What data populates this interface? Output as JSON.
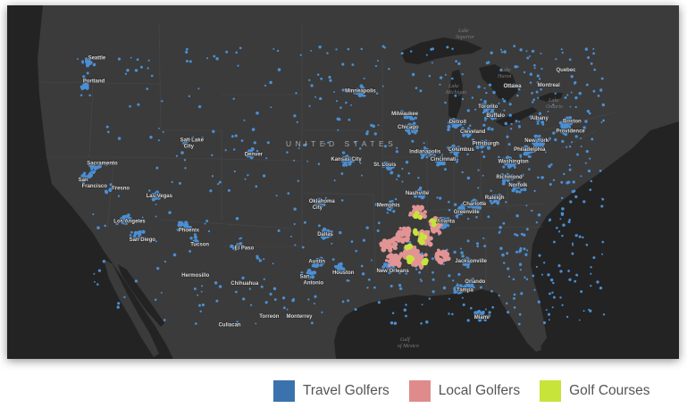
{
  "map": {
    "country_label": "UNITED STATES",
    "water_labels": [
      "Lake Superior",
      "Lake Huron",
      "Lake Michigan",
      "Lake Ontario",
      "Gulf of Mexico"
    ],
    "cities": [
      {
        "name": "Seattle",
        "lon": -122.33,
        "lat": 47.61
      },
      {
        "name": "Portland",
        "lon": -122.68,
        "lat": 45.52
      },
      {
        "name": "Sacramento",
        "lon": -121.49,
        "lat": 38.58
      },
      {
        "name": "San Francisco",
        "lon": -122.42,
        "lat": 37.77
      },
      {
        "name": "Fresno",
        "lon": -119.79,
        "lat": 36.74
      },
      {
        "name": "Los Angeles",
        "lon": -118.24,
        "lat": 34.05
      },
      {
        "name": "San Diego",
        "lon": -117.16,
        "lat": 32.72
      },
      {
        "name": "Las Vegas",
        "lon": -115.14,
        "lat": 36.17
      },
      {
        "name": "Phoenix",
        "lon": -112.07,
        "lat": 33.45
      },
      {
        "name": "Tucson",
        "lon": -110.97,
        "lat": 32.22
      },
      {
        "name": "Salt Lake City",
        "lon": -111.89,
        "lat": 40.76
      },
      {
        "name": "Denver",
        "lon": -104.99,
        "lat": 39.74
      },
      {
        "name": "El Paso",
        "lon": -106.44,
        "lat": 31.76
      },
      {
        "name": "Hermosillo",
        "lon": -110.96,
        "lat": 29.07
      },
      {
        "name": "Chihuahua",
        "lon": -106.08,
        "lat": 28.63
      },
      {
        "name": "Culiacan",
        "lon": -107.39,
        "lat": 24.81
      },
      {
        "name": "Torreón",
        "lon": -103.41,
        "lat": 25.54
      },
      {
        "name": "Monterrey",
        "lon": -100.31,
        "lat": 25.69
      },
      {
        "name": "Minneapolis",
        "lon": -93.27,
        "lat": 44.98
      },
      {
        "name": "Kansas City",
        "lon": -94.58,
        "lat": 39.1
      },
      {
        "name": "Oklahoma City",
        "lon": -97.52,
        "lat": 35.47
      },
      {
        "name": "Dallas",
        "lon": -96.8,
        "lat": 32.78
      },
      {
        "name": "Austin",
        "lon": -97.74,
        "lat": 30.27
      },
      {
        "name": "San Antonio",
        "lon": -98.49,
        "lat": 29.42
      },
      {
        "name": "Houston",
        "lon": -95.37,
        "lat": 29.76
      },
      {
        "name": "New Orleans",
        "lon": -90.07,
        "lat": 29.95
      },
      {
        "name": "Memphis",
        "lon": -90.05,
        "lat": 35.15
      },
      {
        "name": "St. Louis",
        "lon": -90.2,
        "lat": 38.63
      },
      {
        "name": "Nashville",
        "lon": -86.78,
        "lat": 36.16
      },
      {
        "name": "Atlanta",
        "lon": -84.39,
        "lat": 33.75
      },
      {
        "name": "Chicago",
        "lon": -87.63,
        "lat": 41.88
      },
      {
        "name": "Milwaukee",
        "lon": -87.91,
        "lat": 43.04
      },
      {
        "name": "Detroit",
        "lon": -83.05,
        "lat": 42.33
      },
      {
        "name": "Indianapolis",
        "lon": -86.16,
        "lat": 39.77
      },
      {
        "name": "Cincinnati",
        "lon": -84.51,
        "lat": 39.1
      },
      {
        "name": "Columbus",
        "lon": -82.99,
        "lat": 39.96
      },
      {
        "name": "Cleveland",
        "lon": -81.69,
        "lat": 41.5
      },
      {
        "name": "Pittsburgh",
        "lon": -79.99,
        "lat": 40.44
      },
      {
        "name": "Buffalo",
        "lon": -78.88,
        "lat": 42.89
      },
      {
        "name": "Toronto",
        "lon": -79.38,
        "lat": 43.65
      },
      {
        "name": "Ottawa",
        "lon": -75.7,
        "lat": 45.42
      },
      {
        "name": "Montreal",
        "lon": -73.57,
        "lat": 45.5
      },
      {
        "name": "Quebec",
        "lon": -71.21,
        "lat": 46.81
      },
      {
        "name": "Albany",
        "lon": -73.76,
        "lat": 42.65
      },
      {
        "name": "Boston",
        "lon": -71.06,
        "lat": 42.36
      },
      {
        "name": "Providence",
        "lon": -71.41,
        "lat": 41.82
      },
      {
        "name": "New York",
        "lon": -74.0,
        "lat": 40.71
      },
      {
        "name": "Philadelphia",
        "lon": -75.17,
        "lat": 39.95
      },
      {
        "name": "Washington",
        "lon": -77.04,
        "lat": 38.91
      },
      {
        "name": "Richmond",
        "lon": -77.44,
        "lat": 37.54
      },
      {
        "name": "Norfolk",
        "lon": -76.29,
        "lat": 36.85
      },
      {
        "name": "Raleigh",
        "lon": -78.64,
        "lat": 35.78
      },
      {
        "name": "Charlotte",
        "lon": -80.84,
        "lat": 35.23
      },
      {
        "name": "Greenville",
        "lon": -82.39,
        "lat": 34.85
      },
      {
        "name": "Jacksonville",
        "lon": -81.66,
        "lat": 30.33
      },
      {
        "name": "Orlando",
        "lon": -81.38,
        "lat": 28.54
      },
      {
        "name": "Tampa",
        "lon": -82.46,
        "lat": 27.95
      },
      {
        "name": "Miami",
        "lon": -80.19,
        "lat": 25.76
      }
    ]
  },
  "legend": [
    {
      "label": "Travel Golfers",
      "color": "#3a72ad"
    },
    {
      "label": "Local Golfers",
      "color": "#e08b8b"
    },
    {
      "label": "Golf Courses",
      "color": "#c6e43a"
    }
  ],
  "colors": {
    "land": "#3b3b3b",
    "water": "#232323",
    "border": "#4a4a4a",
    "travel": "#4a8fd4",
    "local": "#e29494",
    "course": "#c6e43a"
  }
}
